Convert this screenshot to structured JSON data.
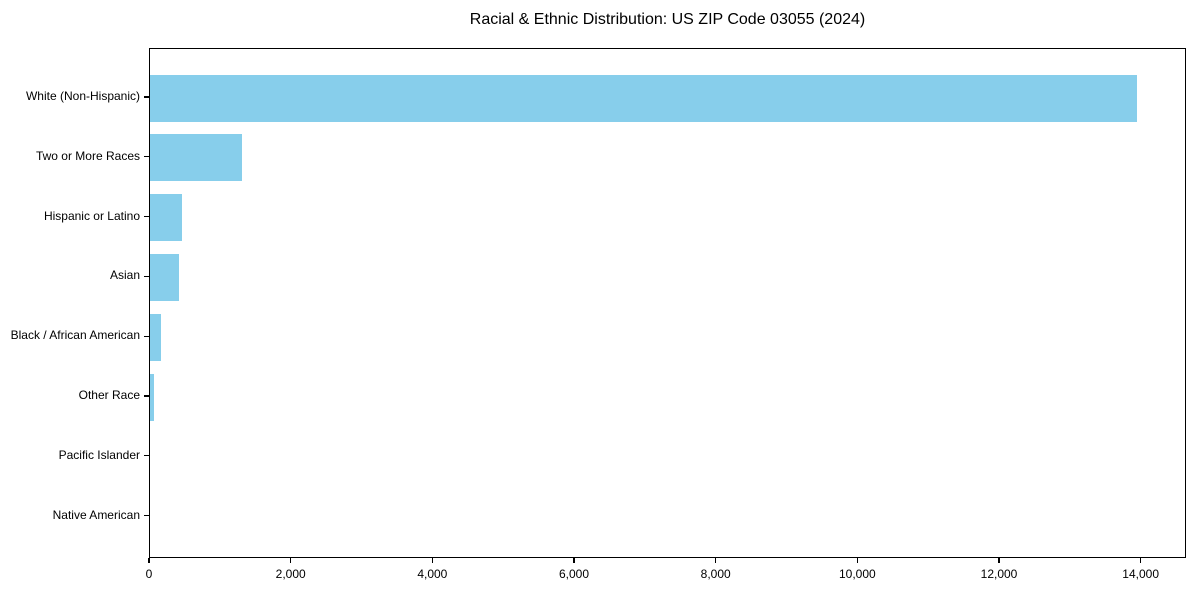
{
  "chart_data": {
    "type": "bar",
    "orientation": "horizontal",
    "title": "Racial & Ethnic Distribution: US ZIP Code 03055 (2024)",
    "categories": [
      "White (Non-Hispanic)",
      "Two or More Races",
      "Hispanic or Latino",
      "Asian",
      "Black / African American",
      "Other Race",
      "Pacific Islander",
      "Native American"
    ],
    "values": [
      13940,
      1300,
      445,
      415,
      160,
      60,
      0,
      0
    ],
    "xlabel": "",
    "ylabel": "",
    "xlim": [
      0,
      14640
    ],
    "xticks": [
      0,
      2000,
      4000,
      6000,
      8000,
      10000,
      12000,
      14000
    ],
    "xtick_labels": [
      "0",
      "2,000",
      "4,000",
      "6,000",
      "8,000",
      "10,000",
      "12,000",
      "14,000"
    ],
    "grid": false,
    "legend": "none"
  },
  "colors": {
    "bar": "#87CEEB",
    "axis": "#000000",
    "text": "#000000",
    "background": "#ffffff"
  }
}
